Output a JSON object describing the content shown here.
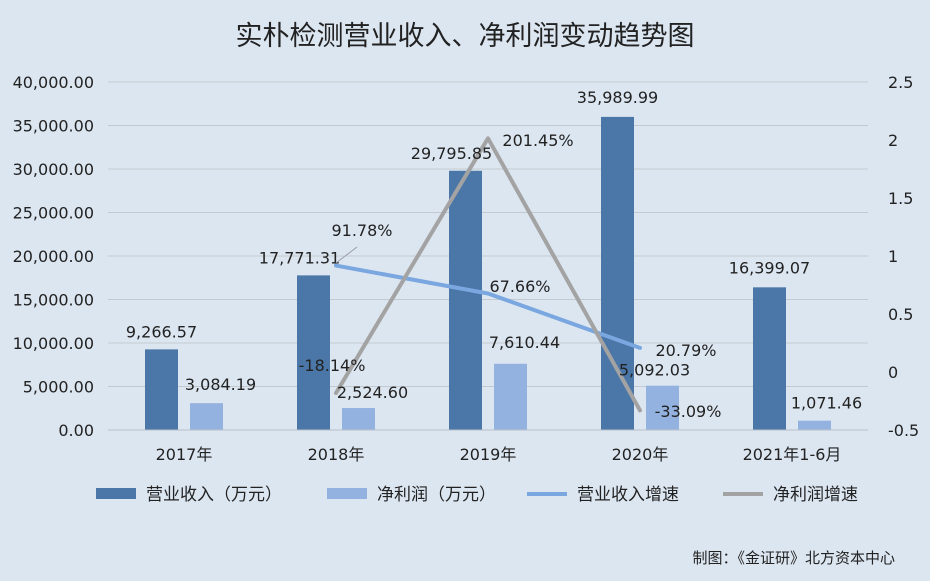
{
  "chart_data": {
    "type": "bar",
    "title": "实朴检测营业收入、净利润变动趋势图",
    "categories": [
      "2017年",
      "2018年",
      "2019年",
      "2020年",
      "2021年1-6月"
    ],
    "series": [
      {
        "name": "营业收入（万元）",
        "kind": "bar",
        "axis": "left",
        "color": "#4a76a8",
        "values": [
          9266.57,
          17771.31,
          29795.85,
          35989.99,
          16399.07
        ],
        "labels": [
          "9,266.57",
          "17,771.31",
          "29,795.85",
          "35,989.99",
          "16,399.07"
        ]
      },
      {
        "name": "净利润（万元）",
        "kind": "bar",
        "axis": "left",
        "color": "#94b2e0",
        "values": [
          3084.19,
          2524.6,
          7610.44,
          5092.03,
          1071.46
        ],
        "labels": [
          "3,084.19",
          "2,524.60",
          "7,610.44",
          "5,092.03",
          "1,071.46"
        ]
      },
      {
        "name": "营业收入增速",
        "kind": "line",
        "axis": "right",
        "color": "#7aa7df",
        "values": [
          null,
          0.9178,
          0.6766,
          0.2079,
          null
        ],
        "labels": [
          "",
          "91.78%",
          "67.66%",
          "20.79%",
          ""
        ]
      },
      {
        "name": "净利润增速",
        "kind": "line",
        "axis": "right",
        "color": "#a3a3a3",
        "values": [
          null,
          -0.1814,
          2.0145,
          -0.3309,
          null
        ],
        "labels": [
          "",
          "-18.14%",
          "201.45%",
          "-33.09%",
          ""
        ]
      }
    ],
    "y_left": {
      "min": 0,
      "max": 40000,
      "ticks": [
        0,
        5000,
        10000,
        15000,
        20000,
        25000,
        30000,
        35000,
        40000
      ],
      "tick_labels": [
        "0.00",
        "5,000.00",
        "10,000.00",
        "15,000.00",
        "20,000.00",
        "25,000.00",
        "30,000.00",
        "35,000.00",
        "40,000.00"
      ]
    },
    "y_right": {
      "min": -0.5,
      "max": 2.5,
      "ticks": [
        -0.5,
        0,
        0.5,
        1,
        1.5,
        2,
        2.5
      ],
      "tick_labels": [
        "-0.5",
        "0",
        "0.5",
        "1",
        "1.5",
        "2",
        "2.5"
      ]
    },
    "grid": true,
    "legend": "bottom"
  },
  "footer": {
    "source": "制图：《金证研》北方资本中心"
  }
}
